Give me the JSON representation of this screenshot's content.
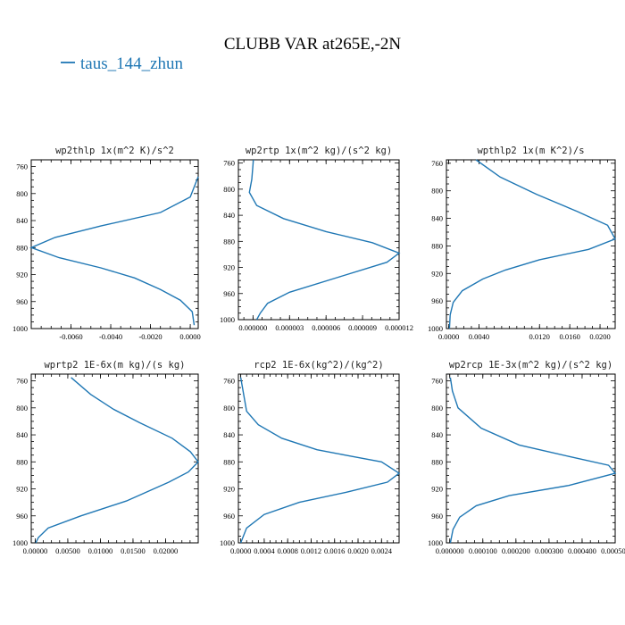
{
  "figure": {
    "title": "CLUBB VAR at265E,-2N",
    "legend": {
      "label": "taus_144_zhun",
      "color": "#1f77b4"
    }
  },
  "chart_data": [
    {
      "type": "line",
      "title": "wp2thlp  1x(m^2 K)/s^2",
      "xlim": [
        -0.008,
        0.0004
      ],
      "ylim": [
        1000,
        750
      ],
      "x_ticks": [
        "-0.0060",
        "-0.0040",
        "-0.0020",
        "0.0000"
      ],
      "x_tick_values": [
        -0.006,
        -0.004,
        -0.002,
        0.0
      ],
      "y_ticks": [
        "760",
        "800",
        "840",
        "880",
        "920",
        "960",
        "1000"
      ],
      "series": [
        {
          "x": [
            0.0004,
            0.0,
            -0.0015,
            -0.0045,
            -0.0068,
            -0.008,
            -0.0066,
            -0.0045,
            -0.0028,
            -0.0015,
            -0.0005,
            0.0001,
            0.0002
          ],
          "y": [
            775,
            805,
            828,
            848,
            865,
            880,
            895,
            910,
            925,
            942,
            958,
            975,
            995
          ]
        }
      ]
    },
    {
      "type": "line",
      "title": "wp2rtp  1x(m^2 kg)/(s^2 kg)",
      "xlim": [
        -1.2e-06,
        1.2e-05
      ],
      "ylim": [
        1000,
        755
      ],
      "x_ticks": [
        "0.000000",
        "0.000003",
        "0.000006",
        "0.000009",
        "0.000012"
      ],
      "x_tick_values": [
        0.0,
        3e-06,
        6e-06,
        9e-06,
        1.2e-05
      ],
      "y_ticks": [
        "760",
        "800",
        "840",
        "880",
        "920",
        "960",
        "1000"
      ],
      "series": [
        {
          "x": [
            3e-08,
            -1e-07,
            -3e-07,
            3e-07,
            2.5e-06,
            6e-06,
            9.8e-06,
            1.2e-05,
            1.1e-05,
            7e-06,
            3e-06,
            1.2e-06,
            6e-07,
            3e-07
          ],
          "y": [
            755,
            785,
            805,
            825,
            845,
            865,
            882,
            898,
            912,
            935,
            958,
            975,
            990,
            1000
          ]
        }
      ]
    },
    {
      "type": "line",
      "title": "wpthlp2  1x(m K^2)/s",
      "xlim": [
        -0.0003,
        0.022
      ],
      "ylim": [
        1000,
        755
      ],
      "x_ticks": [
        "0.0000",
        "0.0040",
        "0.0120",
        "0.0160",
        "0.0200"
      ],
      "x_tick_values": [
        0.0,
        0.004,
        0.012,
        0.016,
        0.02
      ],
      "y_ticks": [
        "760",
        "800",
        "840",
        "880",
        "920",
        "960",
        "1000"
      ],
      "series": [
        {
          "x": [
            0.0036,
            0.0068,
            0.0116,
            0.017,
            0.021,
            0.022,
            0.0185,
            0.012,
            0.0075,
            0.0045,
            0.0018,
            0.0006,
            0.0002,
            0.0001
          ],
          "y": [
            755,
            780,
            805,
            830,
            850,
            870,
            885,
            900,
            915,
            928,
            945,
            962,
            980,
            1000
          ]
        }
      ]
    },
    {
      "type": "line",
      "title": "wprtp2  1E-6x(m kg)/(s kg)",
      "xlim": [
        -0.0006,
        0.025
      ],
      "ylim": [
        1000,
        750
      ],
      "x_ticks": [
        "0.00000",
        "0.00500",
        "0.01000",
        "0.01500",
        "0.02000"
      ],
      "x_tick_values": [
        0.0,
        0.005,
        0.01,
        0.015,
        0.02
      ],
      "y_ticks": [
        "760",
        "800",
        "840",
        "880",
        "920",
        "960",
        "1000"
      ],
      "series": [
        {
          "x": [
            0.0055,
            0.0085,
            0.012,
            0.016,
            0.021,
            0.0238,
            0.025,
            0.0235,
            0.0205,
            0.014,
            0.007,
            0.002,
            0.0005,
            0.0001
          ],
          "y": [
            755,
            780,
            802,
            822,
            845,
            865,
            880,
            895,
            910,
            938,
            960,
            978,
            992,
            1000
          ]
        }
      ]
    },
    {
      "type": "line",
      "title": "rcp2  1E-6x(kg^2)/(kg^2)",
      "xlim": [
        -4e-05,
        0.0027
      ],
      "ylim": [
        1000,
        750
      ],
      "x_ticks": [
        "0.0000",
        "0.0004",
        "0.0008",
        "0.0012",
        "0.0016",
        "0.0020",
        "0.0024"
      ],
      "x_tick_values": [
        0.0,
        0.0004,
        0.0008,
        0.0012,
        0.0016,
        0.002,
        0.0024
      ],
      "y_ticks": [
        "760",
        "800",
        "840",
        "880",
        "920",
        "960",
        "1000"
      ],
      "series": [
        {
          "x": [
            0.0,
            5e-05,
            0.0001,
            0.0003,
            0.0007,
            0.0013,
            0.0019,
            0.0024,
            0.0027,
            0.0025,
            0.0018,
            0.001,
            0.0004,
            0.0001,
            0.0
          ],
          "y": [
            755,
            780,
            805,
            825,
            845,
            862,
            872,
            880,
            897,
            910,
            925,
            940,
            958,
            978,
            1000
          ]
        }
      ]
    },
    {
      "type": "line",
      "title": "wp2rcp  1E-3x(m^2 kg)/(s^2 kg)",
      "xlim": [
        -1e-05,
        0.0005
      ],
      "ylim": [
        1000,
        750
      ],
      "x_ticks": [
        "0.000000",
        "0.000100",
        "0.000200",
        "0.000300",
        "0.000400",
        "0.000500"
      ],
      "x_tick_values": [
        0.0,
        0.0001,
        0.0002,
        0.0003,
        0.0004,
        0.0005
      ],
      "y_ticks": [
        "760",
        "800",
        "840",
        "880",
        "920",
        "960",
        "1000"
      ],
      "series": [
        {
          "x": [
            2e-06,
            8e-06,
            2.5e-05,
            9.5e-05,
            0.00021,
            0.00036,
            0.00048,
            0.0005,
            0.00036,
            0.00018,
            8e-05,
            3e-05,
            1e-05,
            2e-06
          ],
          "y": [
            755,
            775,
            800,
            830,
            855,
            872,
            885,
            897,
            915,
            930,
            945,
            962,
            980,
            1000
          ]
        }
      ]
    }
  ]
}
